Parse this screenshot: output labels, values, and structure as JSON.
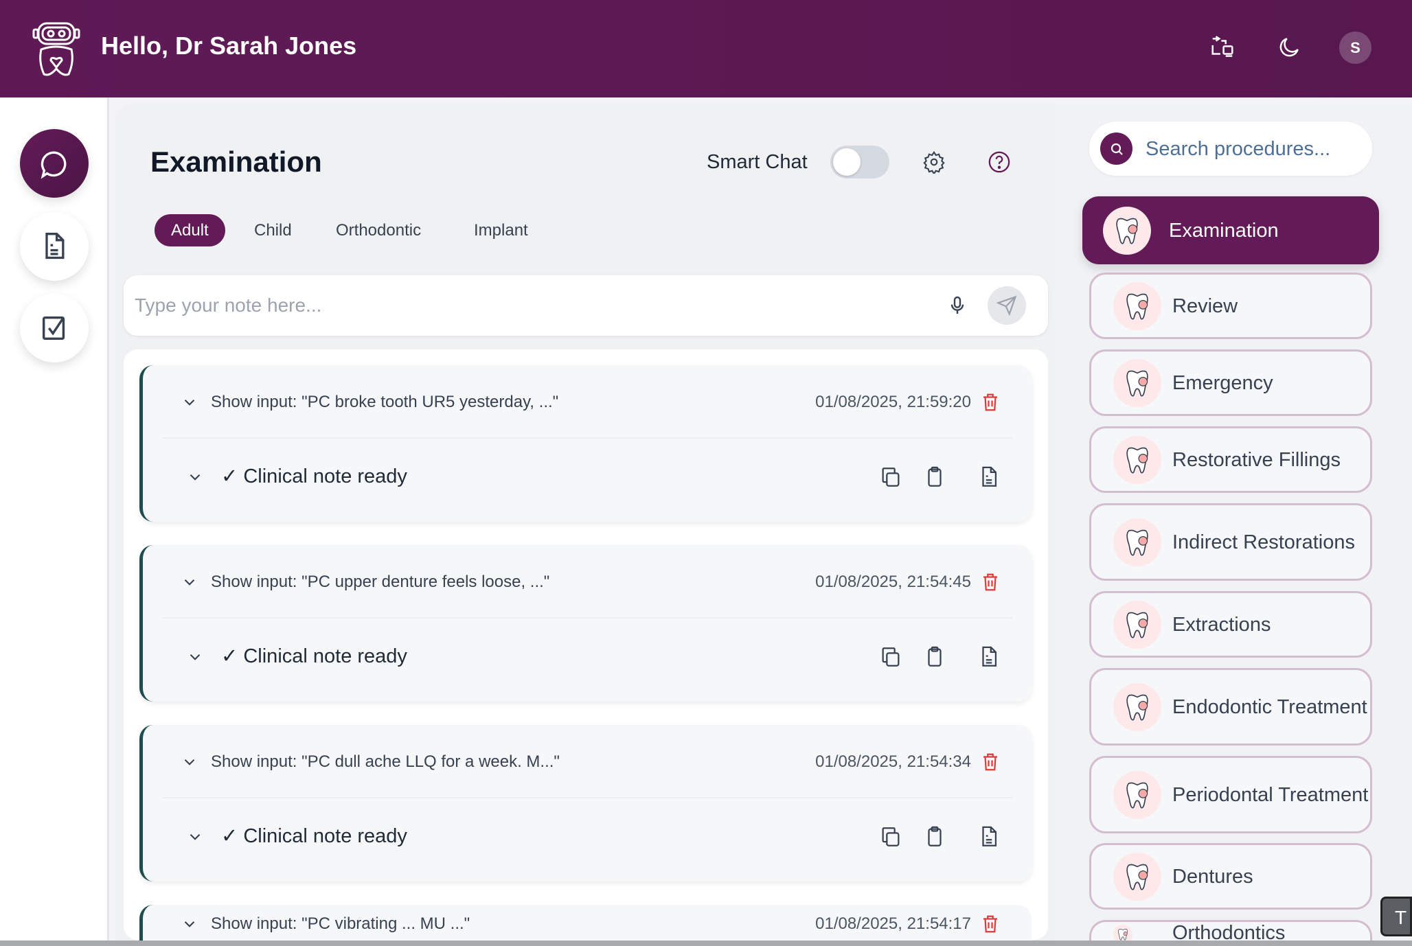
{
  "header": {
    "greeting": "Hello, Dr Sarah Jones",
    "avatar_initial": "S",
    "icons": [
      "robot-tooth-logo",
      "switch-icon",
      "moon-icon"
    ]
  },
  "rail": {
    "items": [
      {
        "icon": "chat-icon",
        "active": true
      },
      {
        "icon": "document-icon",
        "active": false
      },
      {
        "icon": "checkbox-icon",
        "active": false
      }
    ]
  },
  "main": {
    "title": "Examination",
    "smart_chat_label": "Smart Chat",
    "smart_chat_on": false,
    "tabs": [
      {
        "label": "Adult",
        "active": true
      },
      {
        "label": "Child"
      },
      {
        "label": "Orthodontic"
      },
      {
        "label": "Implant"
      }
    ],
    "note_placeholder": "Type your note here...",
    "notes": [
      {
        "input": "Show input: \"PC broke tooth UR5 yesterday, ...\"",
        "timestamp": "01/08/2025, 21:59:20",
        "status": "✓ Clinical note ready"
      },
      {
        "input": "Show input: \"PC upper denture feels loose, ...\"",
        "timestamp": "01/08/2025, 21:54:45",
        "status": "✓ Clinical note ready"
      },
      {
        "input": "Show input: \"PC dull ache LLQ for a week. M...\"",
        "timestamp": "01/08/2025, 21:54:34",
        "status": "✓ Clinical note ready"
      },
      {
        "input": "Show input: \"PC vibrating ... MU ...\"",
        "timestamp": "01/08/2025, 21:54:17"
      }
    ]
  },
  "procedures": {
    "search_placeholder": "Search procedures...",
    "items": [
      {
        "label": "Examination",
        "active": true
      },
      {
        "label": "Review"
      },
      {
        "label": "Emergency"
      },
      {
        "label": "Restorative Fillings"
      },
      {
        "label": "Indirect Restorations"
      },
      {
        "label": "Extractions"
      },
      {
        "label": "Endodontic Treatment"
      },
      {
        "label": "Periodontal Treatment"
      },
      {
        "label": "Dentures"
      },
      {
        "label": "Orthodontics"
      }
    ]
  },
  "tooltip": {
    "text": "T"
  },
  "colors": {
    "brand": "#621b57",
    "card_accent": "#1e4d4f",
    "danger": "#dc3c3c"
  }
}
